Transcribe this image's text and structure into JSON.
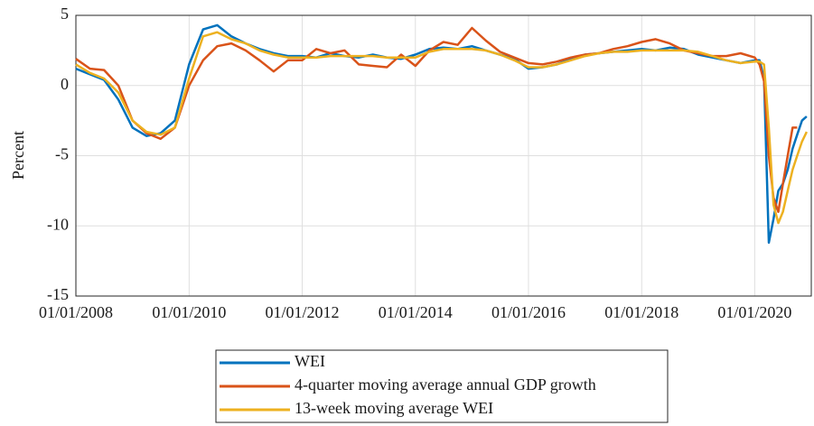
{
  "chart_data": {
    "type": "line",
    "y_label": "Percent",
    "x": [
      "2008-01-01",
      "2008-04-01",
      "2008-07-01",
      "2008-10-01",
      "2009-01-01",
      "2009-04-01",
      "2009-07-01",
      "2009-10-01",
      "2010-01-01",
      "2010-04-01",
      "2010-07-01",
      "2010-10-01",
      "2011-01-01",
      "2011-04-01",
      "2011-07-01",
      "2011-10-01",
      "2012-01-01",
      "2012-04-01",
      "2012-07-01",
      "2012-10-01",
      "2013-01-01",
      "2013-04-01",
      "2013-07-01",
      "2013-10-01",
      "2014-01-01",
      "2014-04-01",
      "2014-07-01",
      "2014-10-01",
      "2015-01-01",
      "2015-04-01",
      "2015-07-01",
      "2015-10-01",
      "2016-01-01",
      "2016-04-01",
      "2016-07-01",
      "2016-10-01",
      "2017-01-01",
      "2017-04-01",
      "2017-07-01",
      "2017-10-01",
      "2018-01-01",
      "2018-04-01",
      "2018-07-01",
      "2018-10-01",
      "2019-01-01",
      "2019-04-01",
      "2019-07-01",
      "2019-10-01",
      "2020-01-01",
      "2020-02-01",
      "2020-03-01",
      "2020-04-01",
      "2020-05-01",
      "2020-06-01",
      "2020-07-01",
      "2020-08-01",
      "2020-09-01",
      "2020-10-01",
      "2020-11-01",
      "2020-12-01"
    ],
    "series": [
      {
        "name": "WEI",
        "color": "#0072bd",
        "values": [
          1.2,
          0.8,
          0.4,
          -1.0,
          -3.0,
          -3.6,
          -3.4,
          -2.5,
          1.5,
          4.0,
          4.3,
          3.5,
          3.0,
          2.6,
          2.3,
          2.1,
          2.1,
          2.0,
          2.3,
          2.1,
          2.0,
          2.2,
          2.0,
          1.9,
          2.2,
          2.6,
          2.7,
          2.6,
          2.8,
          2.5,
          2.2,
          1.9,
          1.2,
          1.3,
          1.5,
          1.9,
          2.2,
          2.3,
          2.4,
          2.5,
          2.6,
          2.5,
          2.7,
          2.6,
          2.2,
          2.0,
          1.8,
          1.6,
          1.8,
          1.8,
          0.5,
          -11.2,
          -9.5,
          -7.5,
          -7.0,
          -6.0,
          -4.5,
          -3.5,
          -2.5,
          -2.2
        ]
      },
      {
        "name": "4-quarter moving average annual GDP growth",
        "color": "#d95319",
        "values": [
          1.9,
          1.2,
          1.1,
          0.0,
          -2.5,
          -3.4,
          -3.8,
          -3.0,
          0.0,
          1.8,
          2.8,
          3.0,
          2.5,
          1.8,
          1.0,
          1.8,
          1.8,
          2.6,
          2.3,
          2.5,
          1.5,
          1.4,
          1.3,
          2.2,
          1.4,
          2.5,
          3.1,
          2.9,
          4.1,
          3.2,
          2.4,
          2.0,
          1.6,
          1.5,
          1.7,
          2.0,
          2.2,
          2.3,
          2.6,
          2.8,
          3.1,
          3.3,
          3.0,
          2.5,
          2.3,
          2.1,
          2.1,
          2.3,
          2.0,
          1.5,
          0.3,
          -5.0,
          -8.0,
          -9.0,
          -7.0,
          -5.0,
          -3.0,
          -3.0,
          null,
          null
        ]
      },
      {
        "name": "13-week moving average WEI",
        "color": "#edb120",
        "values": [
          1.5,
          0.9,
          0.5,
          -0.5,
          -2.5,
          -3.3,
          -3.5,
          -3.0,
          0.5,
          3.5,
          3.8,
          3.3,
          3.0,
          2.5,
          2.2,
          2.0,
          2.0,
          2.0,
          2.1,
          2.1,
          2.1,
          2.1,
          2.0,
          2.0,
          2.0,
          2.4,
          2.6,
          2.6,
          2.6,
          2.5,
          2.2,
          1.8,
          1.3,
          1.3,
          1.5,
          1.8,
          2.1,
          2.3,
          2.4,
          2.4,
          2.5,
          2.5,
          2.5,
          2.5,
          2.4,
          2.1,
          1.8,
          1.6,
          1.7,
          1.7,
          1.5,
          -3.0,
          -8.5,
          -9.8,
          -9.0,
          -7.5,
          -6.0,
          -5.0,
          -4.0,
          -3.3
        ]
      }
    ],
    "xlim": [
      "2008-01-01",
      "2020-12-31"
    ],
    "xticks": [
      {
        "value": "2008-01-01",
        "label": "01/01/2008"
      },
      {
        "value": "2010-01-01",
        "label": "01/01/2010"
      },
      {
        "value": "2012-01-01",
        "label": "01/01/2012"
      },
      {
        "value": "2014-01-01",
        "label": "01/01/2014"
      },
      {
        "value": "2016-01-01",
        "label": "01/01/2016"
      },
      {
        "value": "2018-01-01",
        "label": "01/01/2018"
      },
      {
        "value": "2020-01-01",
        "label": "01/01/2020"
      }
    ],
    "ylim": [
      -15,
      5
    ],
    "yticks": [
      -15,
      -10,
      -5,
      0,
      5
    ],
    "grid": true,
    "legend": "bottom"
  }
}
